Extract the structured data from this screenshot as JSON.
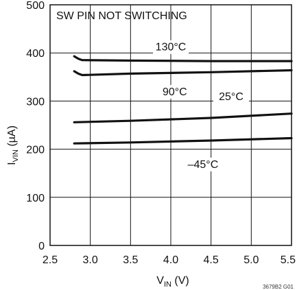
{
  "chart_data": {
    "type": "line",
    "annotation": "SW PIN NOT SWITCHING",
    "xlabel_main": "V",
    "xlabel_sub": "IN",
    "xlabel_unit": " (V)",
    "ylabel_main": "I",
    "ylabel_sub": "VIN",
    "ylabel_unit": " (µA)",
    "xlim": [
      2.5,
      5.5
    ],
    "ylim": [
      0,
      500
    ],
    "x_ticks": [
      "2.5",
      "3.0",
      "3.5",
      "4.0",
      "4.5",
      "5.0",
      "5.5"
    ],
    "y_ticks": [
      "0",
      "100",
      "200",
      "300",
      "400",
      "500"
    ],
    "grid": true,
    "series": [
      {
        "name": "130°C",
        "points": [
          [
            2.8,
            393
          ],
          [
            2.85,
            388
          ],
          [
            2.9,
            385
          ],
          [
            3.5,
            384
          ],
          [
            4.5,
            383
          ],
          [
            5.5,
            383
          ]
        ]
      },
      {
        "name": "90°C",
        "points": [
          [
            2.8,
            362
          ],
          [
            2.85,
            357
          ],
          [
            2.9,
            354
          ],
          [
            3.5,
            357
          ],
          [
            4.5,
            360
          ],
          [
            5.5,
            364
          ]
        ]
      },
      {
        "name": "25°C",
        "points": [
          [
            2.8,
            256
          ],
          [
            3.5,
            259
          ],
          [
            4.5,
            265
          ],
          [
            5.5,
            274
          ]
        ]
      },
      {
        "name": "–45°C",
        "points": [
          [
            2.8,
            212
          ],
          [
            3.5,
            214
          ],
          [
            4.5,
            218
          ],
          [
            5.5,
            223
          ]
        ]
      }
    ],
    "figure_code": "3679B2 G01"
  }
}
